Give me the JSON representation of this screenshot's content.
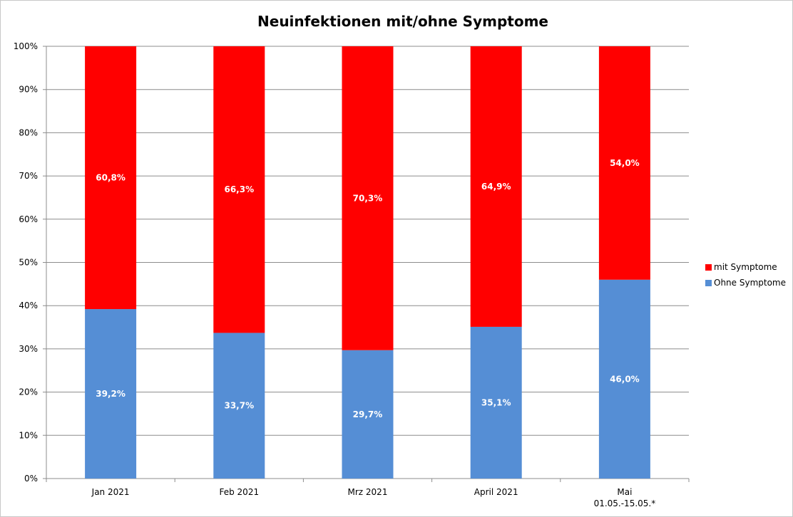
{
  "chart_data": {
    "type": "bar",
    "stacked": true,
    "title": "Neuinfektionen mit/ohne Symptome",
    "categories": [
      [
        "Jan 2021"
      ],
      [
        "Feb 2021"
      ],
      [
        "Mrz 2021"
      ],
      [
        "April 2021"
      ],
      [
        "Mai",
        "01.05.-15.05.*"
      ]
    ],
    "series": [
      {
        "name": "Ohne Symptome",
        "color": "#558ed5",
        "values": [
          39.2,
          33.7,
          29.7,
          35.1,
          46.0
        ],
        "labels": [
          "39,2%",
          "33,7%",
          "29,7%",
          "35,1%",
          "46,0%"
        ]
      },
      {
        "name": "mit Symptome",
        "color": "#ff0000",
        "values": [
          60.8,
          66.3,
          70.3,
          64.9,
          54.0
        ],
        "labels": [
          "60,8%",
          "66,3%",
          "70,3%",
          "64,9%",
          "54,0%"
        ]
      }
    ],
    "yticks": [
      "0%",
      "10%",
      "20%",
      "30%",
      "40%",
      "50%",
      "60%",
      "70%",
      "80%",
      "90%",
      "100%"
    ],
    "ylim": [
      0,
      100
    ],
    "grid": true,
    "legend_position": "right",
    "legend": [
      "mit Symptome",
      "Ohne Symptome"
    ]
  }
}
